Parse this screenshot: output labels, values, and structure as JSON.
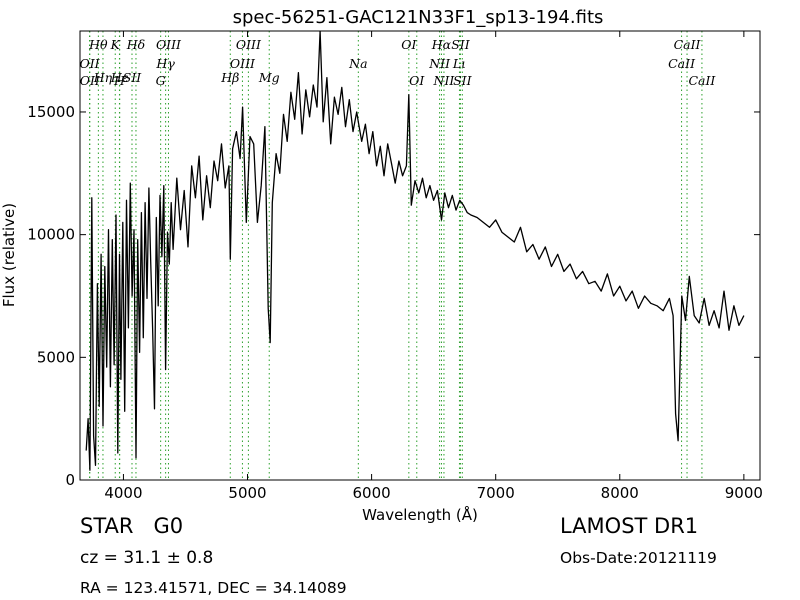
{
  "chart_data": {
    "type": "line",
    "title": "spec-56251-GAC121N33F1_sp13-194.fits",
    "xlabel": "Wavelength (Å)",
    "ylabel": "Flux (relative)",
    "xlim": [
      3650,
      9130
    ],
    "ylim": [
      0,
      18300
    ],
    "xticks": [
      4000,
      5000,
      6000,
      7000,
      8000,
      9000
    ],
    "yticks": [
      0,
      5000,
      10000,
      15000
    ],
    "grid": false,
    "line_color": "#000000",
    "marker_color": "#2ca02c",
    "series": [
      {
        "x": [
          3700,
          3715,
          3730,
          3745,
          3760,
          3775,
          3790,
          3805,
          3820,
          3835,
          3850,
          3865,
          3880,
          3895,
          3910,
          3925,
          3940,
          3955,
          3968,
          3980,
          3995,
          4010,
          4025,
          4040,
          4055,
          4070,
          4085,
          4101,
          4115,
          4130,
          4145,
          4160,
          4175,
          4190,
          4205,
          4220,
          4235,
          4250,
          4265,
          4280,
          4295,
          4310,
          4325,
          4340,
          4355,
          4370,
          4385,
          4400,
          4430,
          4460,
          4490,
          4520,
          4550,
          4580,
          4610,
          4640,
          4670,
          4700,
          4730,
          4760,
          4790,
          4820,
          4850,
          4861,
          4880,
          4910,
          4940,
          4960,
          4990,
          5020,
          5050,
          5080,
          5110,
          5140,
          5167,
          5183,
          5200,
          5230,
          5260,
          5290,
          5320,
          5350,
          5380,
          5410,
          5440,
          5470,
          5500,
          5530,
          5560,
          5585,
          5610,
          5640,
          5670,
          5700,
          5730,
          5760,
          5790,
          5820,
          5850,
          5880,
          5893,
          5920,
          5950,
          5980,
          6010,
          6040,
          6070,
          6100,
          6130,
          6160,
          6190,
          6220,
          6250,
          6280,
          6300,
          6320,
          6350,
          6380,
          6410,
          6440,
          6470,
          6500,
          6530,
          6563,
          6590,
          6620,
          6650,
          6680,
          6710,
          6740,
          6770,
          6800,
          6850,
          6900,
          6950,
          7000,
          7050,
          7100,
          7150,
          7200,
          7250,
          7300,
          7350,
          7400,
          7450,
          7500,
          7550,
          7600,
          7650,
          7700,
          7750,
          7800,
          7850,
          7900,
          7950,
          8000,
          8050,
          8100,
          8150,
          8200,
          8250,
          8300,
          8350,
          8400,
          8430,
          8450,
          8470,
          8500,
          8530,
          8560,
          8600,
          8640,
          8680,
          8720,
          8760,
          8800,
          8840,
          8880,
          8920,
          8960,
          9000
        ],
        "y": [
          1200,
          2500,
          400,
          11500,
          1800,
          600,
          8000,
          3000,
          9200,
          2200,
          8700,
          4600,
          10200,
          3800,
          9800,
          4700,
          10800,
          1100,
          9200,
          4100,
          10500,
          2800,
          11400,
          6200,
          12100,
          7500,
          10200,
          900,
          9800,
          5200,
          10900,
          5800,
          11300,
          7400,
          11900,
          8900,
          6200,
          2900,
          10700,
          7100,
          11600,
          9100,
          12000,
          4500,
          10100,
          8800,
          11300,
          9400,
          12300,
          10200,
          11800,
          9500,
          12800,
          11500,
          13200,
          10600,
          12400,
          11100,
          13000,
          12200,
          13700,
          11900,
          12800,
          9000,
          13500,
          14200,
          13100,
          15200,
          10500,
          14000,
          13700,
          10500,
          12000,
          14400,
          7000,
          5600,
          11300,
          13300,
          12500,
          14900,
          13800,
          15800,
          14700,
          16600,
          14100,
          15900,
          14800,
          16100,
          15200,
          18300,
          14600,
          16400,
          13700,
          15600,
          14900,
          16000,
          14400,
          15500,
          14200,
          15000,
          14600,
          13800,
          14500,
          13300,
          14200,
          12800,
          13600,
          12400,
          13700,
          12900,
          12100,
          13000,
          12400,
          12800,
          15700,
          11200,
          12200,
          11700,
          12300,
          11500,
          12000,
          11400,
          11800,
          10600,
          11700,
          11100,
          11600,
          11000,
          11400,
          11200,
          10900,
          10800,
          10700,
          10500,
          10300,
          10600,
          10100,
          9900,
          9700,
          10300,
          9300,
          9600,
          9000,
          9500,
          8700,
          9200,
          8500,
          8800,
          8200,
          8500,
          8000,
          8100,
          7700,
          8400,
          7500,
          7900,
          7300,
          7700,
          7000,
          7500,
          7200,
          7100,
          6900,
          7400,
          6700,
          2700,
          1600,
          7500,
          6500,
          8300,
          6700,
          6400,
          7400,
          6300,
          6900,
          6200,
          7700,
          6100,
          7100,
          6300,
          6700
        ]
      }
    ],
    "lines": [
      {
        "name": "Hθ",
        "x": 3798,
        "row": 1
      },
      {
        "name": "K",
        "x": 3934,
        "row": 1
      },
      {
        "name": "Hδ",
        "x": 4101,
        "row": 1
      },
      {
        "name": "OIII",
        "x": 4363,
        "row": 1
      },
      {
        "name": "OIII",
        "x": 5007,
        "row": 1
      },
      {
        "name": "OI",
        "x": 6300,
        "row": 1
      },
      {
        "name": "Hα",
        "x": 6563,
        "row": 1
      },
      {
        "name": "SII",
        "x": 6716,
        "row": 1
      },
      {
        "name": "CaII",
        "x": 8542,
        "row": 1
      },
      {
        "name": "OII",
        "x": 3727,
        "row": 2
      },
      {
        "name": "Hγ",
        "x": 4340,
        "row": 2
      },
      {
        "name": "OIII",
        "x": 4959,
        "row": 2
      },
      {
        "name": "Na",
        "x": 5893,
        "row": 2
      },
      {
        "name": "NII",
        "x": 6548,
        "row": 2
      },
      {
        "name": "Lι",
        "x": 6708,
        "row": 2
      },
      {
        "name": "CaII",
        "x": 8498,
        "row": 2
      },
      {
        "name": "Hη",
        "x": 3835,
        "row": 3
      },
      {
        "name": "Hε",
        "x": 3970,
        "row": 3
      },
      {
        "name": "SII",
        "x": 4069,
        "row": 3
      },
      {
        "name": "Hβ",
        "x": 4861,
        "row": 4
      },
      {
        "name": "Mg",
        "x": 5175,
        "row": 4
      },
      {
        "name": "OII",
        "x": 3729,
        "row": 4
      },
      {
        "name": "H",
        "x": 3968,
        "row": 4
      },
      {
        "name": "G",
        "x": 4300,
        "row": 4
      },
      {
        "name": "OI",
        "x": 6364,
        "row": 4
      },
      {
        "name": "NII",
        "x": 6583,
        "row": 4
      },
      {
        "name": "SII",
        "x": 6731,
        "row": 4
      },
      {
        "name": "CaII",
        "x": 8662,
        "row": 4
      }
    ]
  },
  "info": {
    "classification": "STAR",
    "subclass": "G0",
    "redshift": "cz = 31.1 ± 0.8",
    "survey": "LAMOST DR1",
    "obs_date": "Obs-Date:20121119",
    "coords": "RA = 123.41571, DEC = 34.14089"
  }
}
